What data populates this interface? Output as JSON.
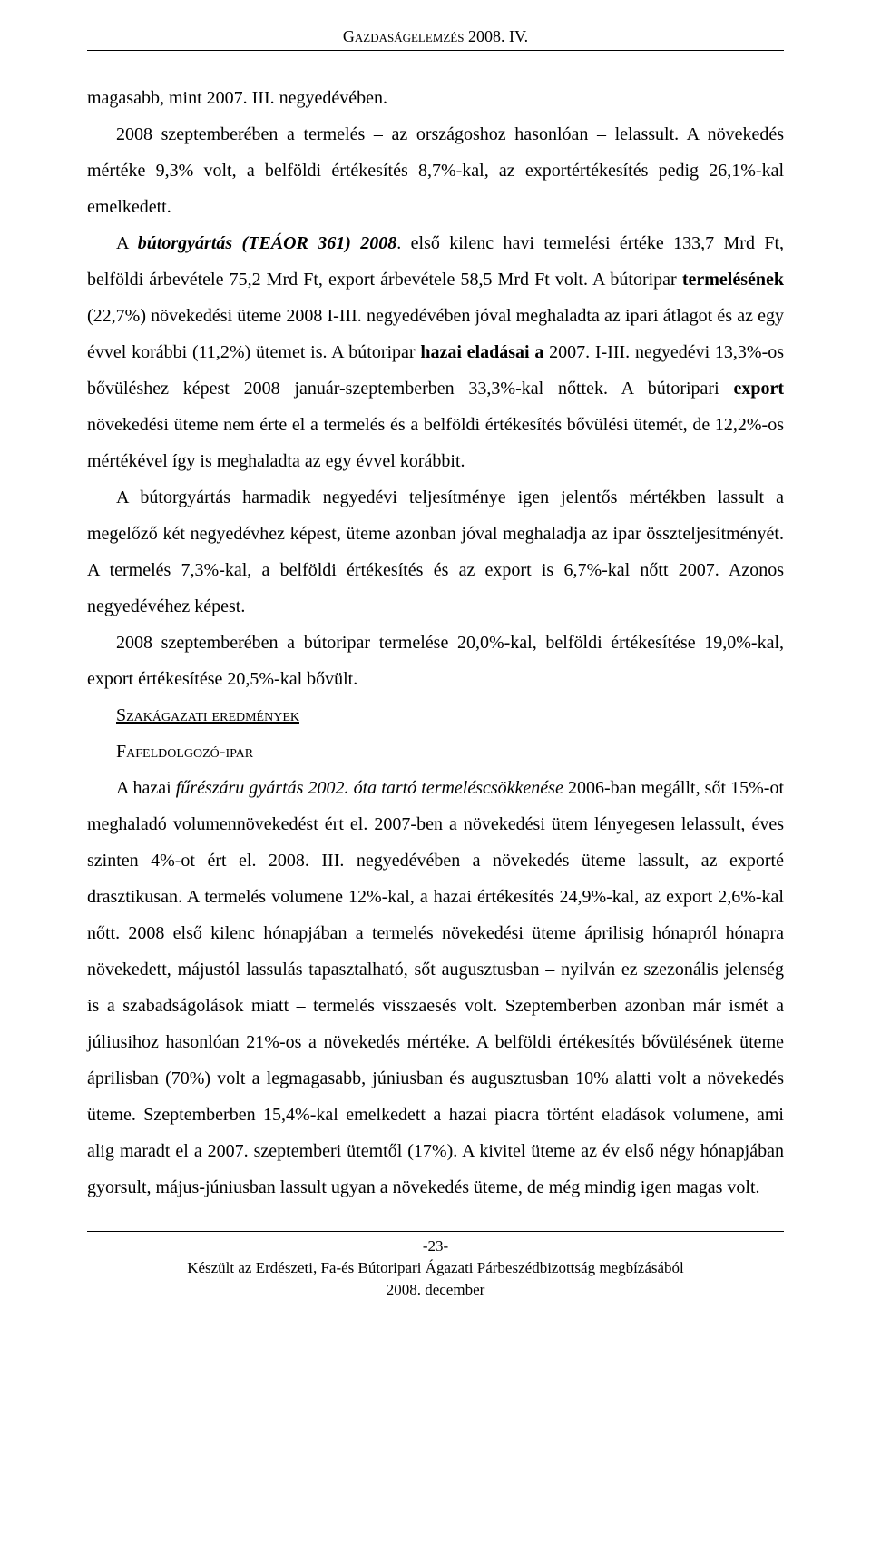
{
  "header": {
    "title": "Gazdaságelemzés 2008. IV."
  },
  "body": {
    "p1": "magasabb, mint 2007. III. negyedévében.",
    "p2_a": "2008 szeptemberében a termelés – az országoshoz hasonlóan – lelassult. A növekedés mértéke 9,3% volt, a belföldi értékesítés 8,7%-kal, az exportértékesítés pedig 26,1%-kal emelkedett.",
    "p3_a": "A ",
    "p3_b_bi": "bútorgyártás (TEÁOR 361) 2008",
    "p3_c": ". első kilenc havi termelési értéke 133,7 Mrd Ft, belföldi árbevétele 75,2 Mrd Ft, export árbevétele 58,5 Mrd Ft volt. A bútoripar ",
    "p3_d_b": "termelésének",
    "p3_e": " (22,7%) növekedési üteme 2008 I-III. negyedévében jóval meghaladta az ipari átlagot és az egy évvel korábbi (11,2%) ütemet is. A bútoripar ",
    "p3_f_b": "hazai eladásai a",
    "p3_g": " 2007. I-III. negyedévi 13,3%-os bővüléshez képest 2008 január-szeptemberben 33,3%-kal nőttek. A bútoripari ",
    "p3_h_b": "export",
    "p3_i": " növekedési üteme nem érte el a termelés és a belföldi értékesítés bővülési ütemét, de 12,2%-os mértékével így is meghaladta az egy évvel korábbit.",
    "p4": "A bútorgyártás harmadik negyedévi teljesítménye igen jelentős mértékben lassult a megelőző két negyedévhez képest, üteme azonban jóval meghaladja az ipar összteljesítményét. A termelés 7,3%-kal, a belföldi értékesítés és az export is 6,7%-kal nőtt 2007. Azonos negyedévéhez képest.",
    "p5": "2008 szeptemberében a bútoripar termelése 20,0%-kal, belföldi értékesítése 19,0%-kal, export értékesítése 20,5%-kal bővült.",
    "section_heading": "Szakágazati eredmények",
    "sub_heading": "Fafeldolgozó-ipar",
    "p6_a": "A hazai ",
    "p6_b_i": "fűrészáru gyártás 2002. óta tartó termeléscsökkenése",
    "p6_c": " 2006-ban megállt, sőt 15%-ot meghaladó volumennövekedést ért el. 2007-ben a növekedési ütem lényegesen lelassult, éves szinten 4%-ot ért el. 2008. III. negyedévében a növekedés üteme lassult, az exporté drasztikusan. A termelés volumene 12%-kal, a hazai értékesítés 24,9%-kal, az export 2,6%-kal nőtt. 2008 első kilenc hónapjában a termelés növekedési üteme áprilisig hónapról hónapra növekedett, májustól lassulás tapasztalható, sőt augusztusban – nyilván ez szezonális jelenség is a szabadságolások miatt – termelés visszaesés volt. Szeptemberben azonban már ismét a júliusihoz hasonlóan 21%-os a növekedés mértéke. A belföldi értékesítés bővülésének üteme áprilisban (70%) volt a legmagasabb, júniusban és augusztusban 10% alatti volt a növekedés üteme. Szeptemberben 15,4%-kal emelkedett a hazai piacra történt eladások volumene, ami alig maradt el a 2007. szeptemberi ütemtől (17%). A kivitel üteme az év első négy hónapjában gyorsult, május-júniusban lassult ugyan a növekedés üteme, de még mindig igen magas volt."
  },
  "footer": {
    "page_num": "-23-",
    "line1": "Készült az Erdészeti, Fa-és Bútoripari Ágazati Párbeszédbizottság megbízásából",
    "line2": "2008. december"
  }
}
